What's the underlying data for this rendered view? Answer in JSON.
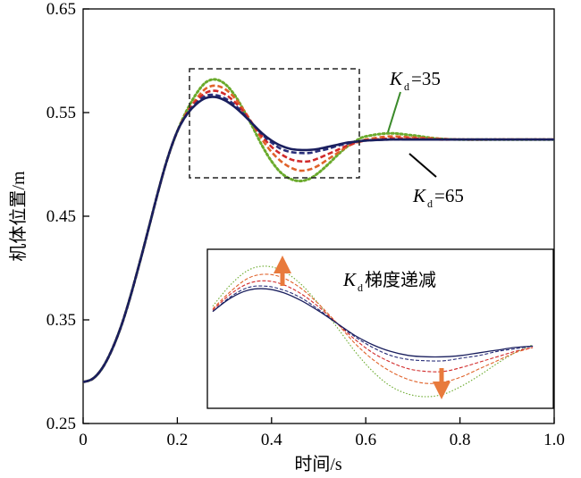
{
  "chart_data": {
    "type": "line",
    "xlabel": "时间/s",
    "ylabel": "机体位置/m",
    "xlim": [
      0,
      1.0
    ],
    "ylim": [
      0.25,
      0.65
    ],
    "xticks": [
      "0",
      "0.2",
      "0.4",
      "0.6",
      "0.8",
      "1.0"
    ],
    "yticks": [
      "0.25",
      "0.35",
      "0.45",
      "0.55",
      "0.65"
    ],
    "grid": false,
    "x": [
      0,
      0.02,
      0.04,
      0.06,
      0.08,
      0.1,
      0.12,
      0.14,
      0.16,
      0.18,
      0.2,
      0.22,
      0.24,
      0.26,
      0.28,
      0.3,
      0.32,
      0.34,
      0.36,
      0.38,
      0.4,
      0.42,
      0.44,
      0.46,
      0.48,
      0.5,
      0.52,
      0.54,
      0.56,
      0.58,
      0.6,
      0.65,
      0.7,
      0.75,
      0.8,
      0.9,
      1.0
    ],
    "series": [
      {
        "color": "#6aaa2c",
        "style": "dotted",
        "values": [
          0.29,
          0.293,
          0.303,
          0.32,
          0.343,
          0.372,
          0.405,
          0.44,
          0.475,
          0.507,
          0.532,
          0.552,
          0.568,
          0.579,
          0.582,
          0.578,
          0.568,
          0.553,
          0.536,
          0.518,
          0.503,
          0.492,
          0.486,
          0.484,
          0.486,
          0.492,
          0.5,
          0.509,
          0.517,
          0.523,
          0.527,
          0.53,
          0.528,
          0.525,
          0.524,
          0.524,
          0.524
        ]
      },
      {
        "color": "#e0622a",
        "style": "dashed",
        "values": [
          0.29,
          0.293,
          0.303,
          0.32,
          0.343,
          0.372,
          0.405,
          0.44,
          0.475,
          0.507,
          0.532,
          0.55,
          0.563,
          0.573,
          0.576,
          0.573,
          0.565,
          0.553,
          0.539,
          0.524,
          0.512,
          0.503,
          0.497,
          0.494,
          0.495,
          0.499,
          0.505,
          0.511,
          0.517,
          0.521,
          0.524,
          0.527,
          0.526,
          0.525,
          0.524,
          0.524,
          0.524
        ]
      },
      {
        "color": "#d12a2a",
        "style": "dashed",
        "values": [
          0.29,
          0.293,
          0.303,
          0.32,
          0.343,
          0.372,
          0.405,
          0.44,
          0.475,
          0.507,
          0.532,
          0.549,
          0.561,
          0.569,
          0.571,
          0.568,
          0.561,
          0.551,
          0.539,
          0.527,
          0.517,
          0.51,
          0.505,
          0.503,
          0.503,
          0.506,
          0.51,
          0.514,
          0.518,
          0.521,
          0.523,
          0.525,
          0.525,
          0.524,
          0.524,
          0.524,
          0.524
        ]
      },
      {
        "color": "#2a2f7a",
        "style": "dashed",
        "values": [
          0.29,
          0.293,
          0.303,
          0.32,
          0.343,
          0.372,
          0.405,
          0.44,
          0.475,
          0.507,
          0.532,
          0.548,
          0.559,
          0.566,
          0.567,
          0.564,
          0.558,
          0.549,
          0.539,
          0.529,
          0.521,
          0.515,
          0.512,
          0.511,
          0.511,
          0.513,
          0.515,
          0.518,
          0.52,
          0.522,
          0.523,
          0.524,
          0.524,
          0.524,
          0.524,
          0.524,
          0.524
        ]
      },
      {
        "color": "#1a1f5e",
        "style": "solid",
        "values": [
          0.29,
          0.293,
          0.303,
          0.32,
          0.343,
          0.372,
          0.405,
          0.44,
          0.475,
          0.507,
          0.532,
          0.548,
          0.558,
          0.564,
          0.565,
          0.562,
          0.556,
          0.548,
          0.539,
          0.53,
          0.523,
          0.518,
          0.515,
          0.514,
          0.514,
          0.515,
          0.517,
          0.519,
          0.521,
          0.522,
          0.523,
          0.524,
          0.524,
          0.524,
          0.524,
          0.524,
          0.524
        ]
      }
    ],
    "annotations": [
      {
        "text": "K",
        "subscript": "d",
        "suffix": "=35"
      },
      {
        "text": "K",
        "subscript": "d",
        "suffix": "=65"
      }
    ],
    "inset": {
      "label": "K",
      "label_sub": "d",
      "label_suffix": "梯度递减",
      "x_range": [
        0.22,
        0.59
      ],
      "y_range": [
        0.48,
        0.59
      ]
    }
  }
}
